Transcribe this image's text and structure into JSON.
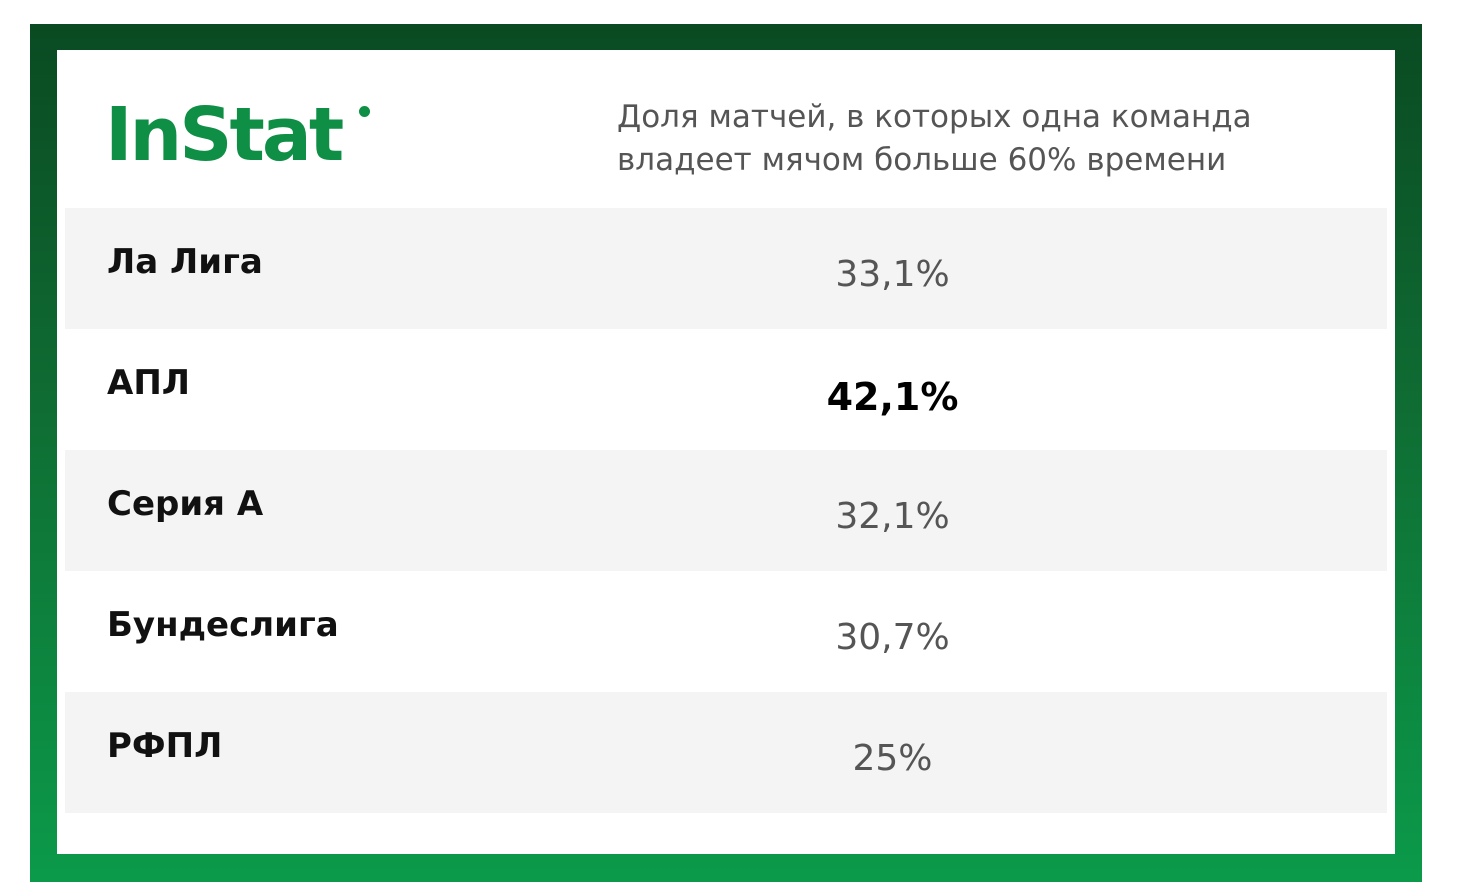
{
  "logo": {
    "text": "InStat"
  },
  "subtitle": {
    "line1": "Доля матчей, в которых одна команда",
    "line2": "владеет мячом больше 60% времени"
  },
  "rows": [
    {
      "league": "Ла Лига",
      "value": "33,1%",
      "highlight": false
    },
    {
      "league": "АПЛ",
      "value": "42,1%",
      "highlight": true
    },
    {
      "league": "Серия А",
      "value": "32,1%",
      "highlight": false
    },
    {
      "league": "Бундеслига",
      "value": "30,7%",
      "highlight": false
    },
    {
      "league": "РФПЛ",
      "value": "25%",
      "highlight": false
    }
  ],
  "colors": {
    "brand_green": "#0e8f45",
    "frame_dark": "#0a4a22",
    "frame_light": "#0b9a4a",
    "row_alt": "#f4f4f4"
  }
}
